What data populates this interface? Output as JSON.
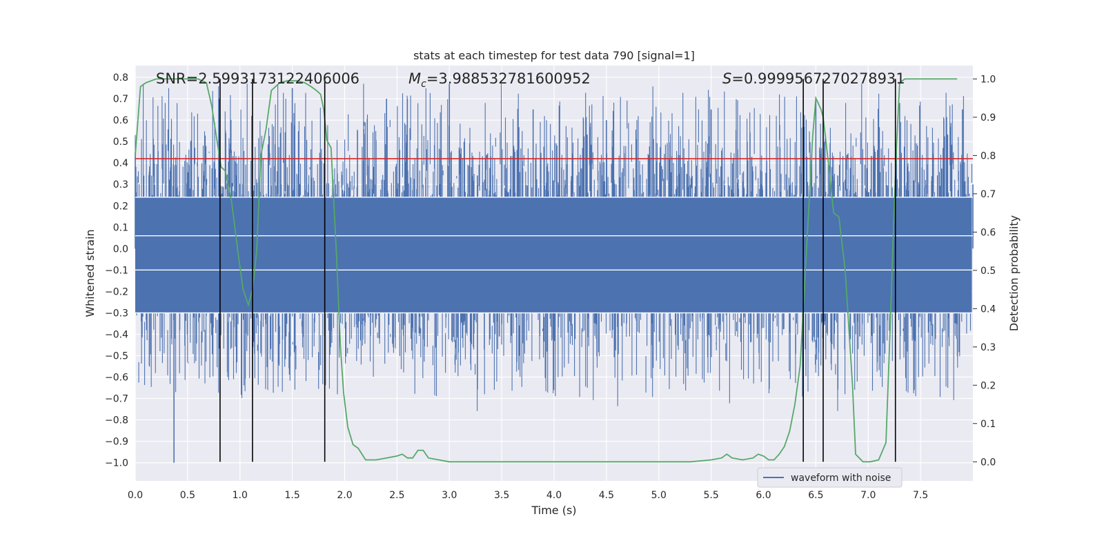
{
  "chart_data": {
    "type": "line",
    "title": "stats at each timestep for test data 790 [signal=1]",
    "xlabel": "Time (s)",
    "ylabel_left": "Whitened strain",
    "ylabel_right": "Detection probability",
    "xlim": [
      0.0,
      8.0
    ],
    "ylim_left": [
      -1.085,
      0.855
    ],
    "ylim_right": [
      -0.05,
      1.035
    ],
    "xticks": [
      "0.0",
      "0.5",
      "1.0",
      "1.5",
      "2.0",
      "2.5",
      "3.0",
      "3.5",
      "4.0",
      "4.5",
      "5.0",
      "5.5",
      "6.0",
      "6.5",
      "7.0",
      "7.5"
    ],
    "yticks_left": [
      "−1.0",
      "−0.9",
      "−0.8",
      "−0.7",
      "−0.6",
      "−0.5",
      "−0.4",
      "−0.3",
      "−0.2",
      "−0.1",
      "0.0",
      "0.1",
      "0.2",
      "0.3",
      "0.4",
      "0.5",
      "0.6",
      "0.7",
      "0.8"
    ],
    "yticks_right": [
      "0.0",
      "0.1",
      "0.2",
      "0.3",
      "0.4",
      "0.5",
      "0.6",
      "0.7",
      "0.8",
      "0.9",
      "1.0"
    ],
    "grid": true,
    "legend": {
      "placement": "lower-right",
      "entries": [
        "waveform with noise"
      ]
    },
    "annotations": {
      "snr": "SNR=2.5993173122406006",
      "mc_symbol": "M",
      "mc_sub": "c",
      "mc_value": "=3.988532781600952",
      "s_symbol": "S",
      "s_value": "=0.9999567270278931"
    },
    "threshold": {
      "y": 0.42,
      "color": "#d62728"
    },
    "vertical_lines_x": [
      0.81,
      1.12,
      1.81,
      6.38,
      6.57,
      7.26
    ],
    "colors": {
      "waveform": "#4c72b0",
      "probability": "#55a868",
      "threshold": "#d62728",
      "vlines": "#000000",
      "background": "#eaeaf2",
      "grid": "#ffffff"
    },
    "series": [
      {
        "name": "waveform with noise",
        "x": [
          0.0,
          0.37,
          0.8,
          1.5,
          2.4,
          3.0,
          3.8,
          4.5,
          5.5,
          6.5,
          7.3,
          7.9,
          8.0
        ],
        "y": [
          0.45,
          -1.0,
          0.7,
          0.75,
          0.7,
          0.77,
          0.65,
          0.6,
          0.65,
          0.7,
          0.68,
          0.65,
          0.3
        ],
        "envelope_upper_typical": 0.43,
        "envelope_lower_typical": -0.4,
        "dense_band": [
          -0.3,
          0.24
        ]
      },
      {
        "x": [
          0.0,
          0.05,
          0.1,
          0.2,
          0.3,
          0.4,
          0.5,
          0.6,
          0.68,
          0.73,
          0.78,
          0.82,
          0.86,
          0.92,
          0.98,
          1.03,
          1.08,
          1.12,
          1.16,
          1.2,
          1.25,
          1.3,
          1.38,
          1.45,
          1.55,
          1.62,
          1.68,
          1.73,
          1.77,
          1.8,
          1.83,
          1.87,
          1.92,
          1.96,
          1.99,
          2.03,
          2.08,
          2.13,
          2.2,
          2.3,
          2.4,
          2.5,
          2.55,
          2.6,
          2.65,
          2.7,
          2.75,
          2.8,
          2.9,
          3.0,
          3.3,
          3.5,
          3.7,
          3.9,
          4.1,
          4.3,
          4.5,
          4.7,
          5.0,
          5.3,
          5.5,
          5.6,
          5.65,
          5.7,
          5.8,
          5.9,
          5.95,
          6.0,
          6.05,
          6.1,
          6.15,
          6.2,
          6.25,
          6.3,
          6.35,
          6.38,
          6.43,
          6.47,
          6.5,
          6.55,
          6.57,
          6.62,
          6.67,
          6.72,
          6.78,
          6.85,
          6.88,
          6.95,
          7.02,
          7.1,
          7.17,
          7.21,
          7.24,
          7.27,
          7.3,
          7.35,
          7.45,
          7.55,
          7.7,
          7.85
        ],
        "y": [
          0.8,
          0.98,
          0.99,
          1.0,
          1.0,
          1.0,
          1.0,
          1.0,
          0.99,
          0.93,
          0.84,
          0.77,
          0.76,
          0.68,
          0.55,
          0.45,
          0.41,
          0.45,
          0.55,
          0.8,
          0.87,
          0.97,
          0.99,
          0.995,
          0.995,
          0.99,
          0.98,
          0.97,
          0.96,
          0.92,
          0.84,
          0.82,
          0.55,
          0.3,
          0.18,
          0.09,
          0.045,
          0.035,
          0.005,
          0.005,
          0.01,
          0.015,
          0.02,
          0.01,
          0.01,
          0.03,
          0.03,
          0.01,
          0.005,
          0.0,
          0.0,
          0.0,
          0.0,
          0.0,
          0.0,
          0.0,
          0.0,
          0.0,
          0.0,
          0.0,
          0.005,
          0.01,
          0.02,
          0.01,
          0.005,
          0.01,
          0.02,
          0.015,
          0.005,
          0.005,
          0.02,
          0.04,
          0.08,
          0.15,
          0.25,
          0.4,
          0.65,
          0.85,
          0.95,
          0.92,
          0.9,
          0.78,
          0.65,
          0.64,
          0.5,
          0.2,
          0.02,
          0.0,
          0.0,
          0.005,
          0.05,
          0.35,
          0.6,
          0.82,
          0.99,
          1.0,
          1.0,
          1.0,
          1.0,
          1.0
        ]
      }
    ]
  }
}
